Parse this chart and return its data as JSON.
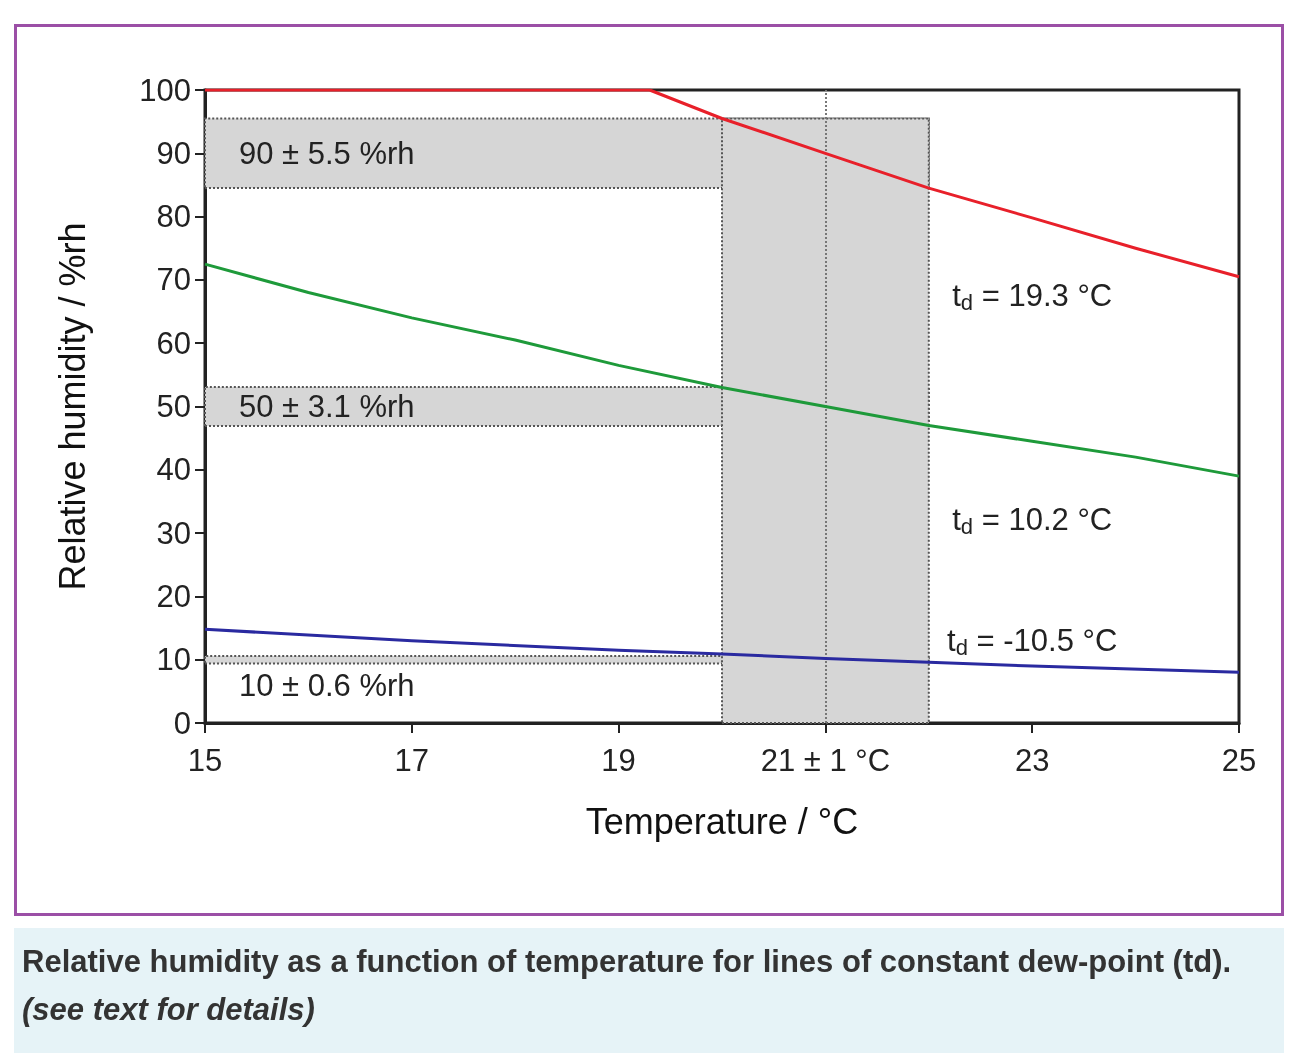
{
  "chart_data": {
    "type": "line",
    "xlabel": "Temperature / °C",
    "ylabel": "Relative humidity / %rh",
    "xlim": [
      15,
      25
    ],
    "xticks": [
      15,
      17,
      19,
      {
        "value": 21,
        "label": "21 ± 1 °C"
      },
      23,
      25
    ],
    "ylim": [
      0,
      100
    ],
    "yticks": [
      0,
      10,
      20,
      30,
      40,
      50,
      60,
      70,
      80,
      90,
      100
    ],
    "grid": false,
    "legend": false,
    "marker": "none",
    "line_style": "solid",
    "series": [
      {
        "name": "t$_{d}$ = 19.3 °C",
        "color": "#e8202a",
        "x": [
          15,
          19.3,
          20,
          21,
          22,
          23,
          24,
          25
        ],
        "values": [
          100,
          100,
          95.5,
          90,
          84.5,
          79.8,
          75,
          70.5
        ]
      },
      {
        "name": "t$_{d}$ = 10.2 °C",
        "color": "#1e9a3a",
        "x": [
          15,
          16,
          17,
          18,
          19,
          20,
          21,
          22,
          23,
          24,
          25
        ],
        "values": [
          72.5,
          68,
          64,
          60.5,
          56.5,
          53,
          50,
          47,
          44.5,
          42,
          39
        ]
      },
      {
        "name": "t$_{d}$ = -10.5 °C",
        "color": "#2a2aa0",
        "x": [
          15,
          17,
          19,
          20,
          21,
          22,
          23,
          25
        ],
        "values": [
          14.8,
          13,
          11.5,
          10.9,
          10.2,
          9.6,
          9,
          8
        ]
      }
    ],
    "bands": [
      {
        "axis": "y",
        "from": 84.5,
        "to": 95.5,
        "label": "90 ± 5.5 %rh",
        "color": "#d6d6d6"
      },
      {
        "axis": "y",
        "from": 46.9,
        "to": 53.1,
        "label": "50 ± 3.1 %rh",
        "color": "#d6d6d6"
      },
      {
        "axis": "y",
        "from": 9.4,
        "to": 10.6,
        "label": "10 ± 0.6 %rh",
        "color": "#d6d6d6"
      },
      {
        "axis": "x",
        "from": 20,
        "to": 22,
        "color": "#d6d6d6"
      }
    ],
    "ref_lines": [
      {
        "axis": "x",
        "value": 21,
        "line_style": "dotted"
      }
    ],
    "annotations": [
      "Relative humidity as a function of temperature for lines of constant dew-point  (td).",
      "(see text for details)"
    ]
  }
}
